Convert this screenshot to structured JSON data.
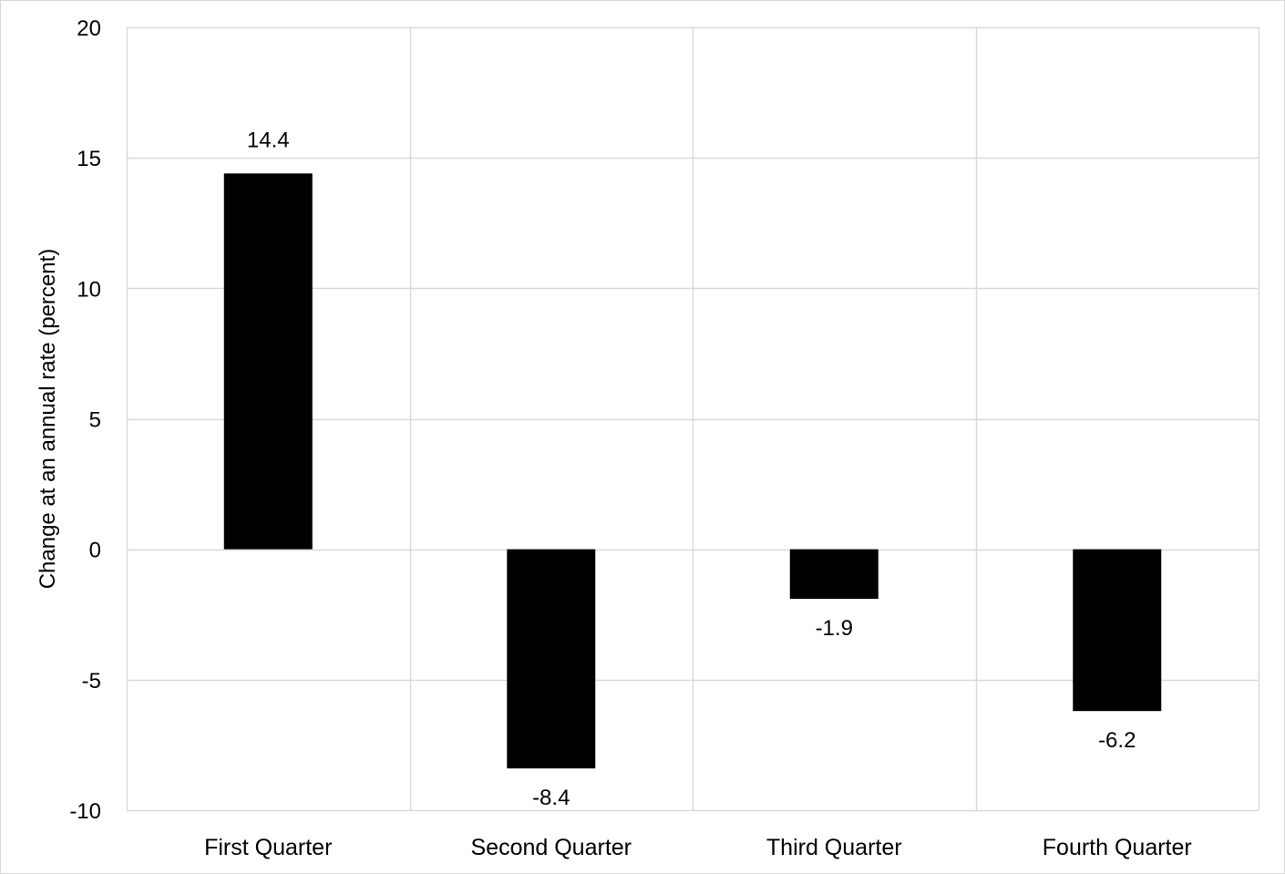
{
  "chart_data": {
    "type": "bar",
    "title": "",
    "xlabel": "",
    "ylabel": "Change at an annual rate (percent)",
    "categories": [
      "First Quarter",
      "Second Quarter",
      "Third Quarter",
      "Fourth Quarter"
    ],
    "values": [
      14.4,
      -8.4,
      -1.9,
      -6.2
    ],
    "data_labels": [
      "14.4",
      "-8.4",
      "-1.9",
      "-6.2"
    ],
    "ylim": [
      -10,
      20
    ],
    "yticks": [
      20,
      15,
      10,
      5,
      0,
      -5,
      -10
    ],
    "grid": true,
    "legend": "none",
    "bar_color": "#000000",
    "grid_color": "#d9d9d9"
  }
}
